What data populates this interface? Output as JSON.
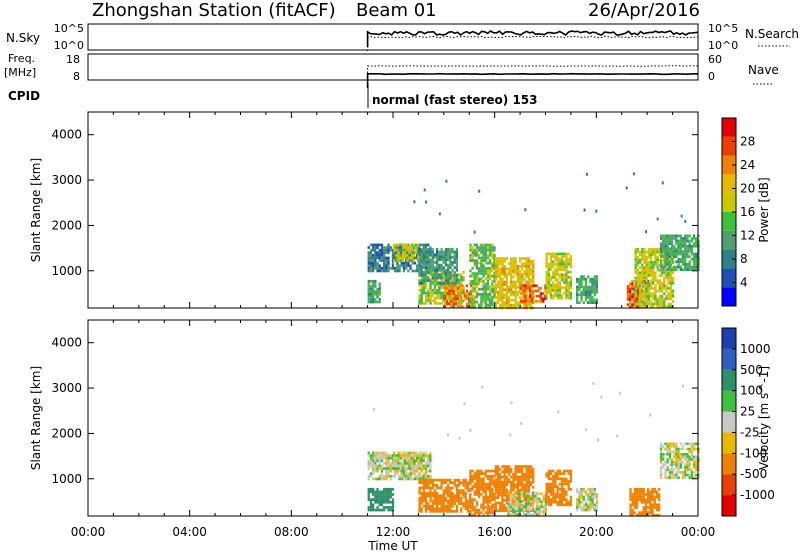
{
  "header": {
    "station": "Zhongshan Station (fitACF)",
    "beam": "Beam 01",
    "date": "26/Apr/2016"
  },
  "strips": {
    "nsky_label": "N.Sky",
    "nsky_ticks": [
      "10^5",
      "10^0"
    ],
    "nsearch_label": "N.Search",
    "nsearch_ticks": [
      "10^5",
      "10^0"
    ],
    "freq_label": "Freq.",
    "freq_unit": "[MHz]",
    "freq_ticks": [
      "18",
      "8"
    ],
    "nave_label": "Nave",
    "nave_ticks": [
      "60",
      "0"
    ],
    "cpid_label": "CPID",
    "cpid_value": "normal (fast stereo) 153",
    "data_start_hour": 11.0
  },
  "chart_data": [
    {
      "type": "heatmap",
      "title": "",
      "xlabel": "Time UT",
      "ylabel": "Slant Range [km]",
      "xlim": [
        0,
        24
      ],
      "ylim": [
        180,
        4500
      ],
      "x_ticks": [
        "00:00",
        "04:00",
        "08:00",
        "12:00",
        "16:00",
        "20:00",
        "00:00"
      ],
      "y_ticks": [
        1000,
        2000,
        3000,
        4000
      ],
      "colorbar": {
        "label": "Power [dB]",
        "ticks": [
          4,
          8,
          12,
          16,
          20,
          24,
          28
        ],
        "colors": [
          "#0000ff",
          "#1f4fb4",
          "#2e7f8a",
          "#4f9f6f",
          "#3fbf3f",
          "#c8c800",
          "#e8b800",
          "#f08000",
          "#e84000",
          "#e00000"
        ]
      },
      "regions": [
        {
          "x": [
            11.0,
            13.5
          ],
          "y": [
            1000,
            1600
          ],
          "value": 8
        },
        {
          "x": [
            11.0,
            11.5
          ],
          "y": [
            300,
            800
          ],
          "value": 12
        },
        {
          "x": [
            12.0,
            13.0
          ],
          "y": [
            1200,
            1600
          ],
          "value": 18
        },
        {
          "x": [
            13.0,
            14.8
          ],
          "y": [
            300,
            1000
          ],
          "value": 16
        },
        {
          "x": [
            14.0,
            15.2
          ],
          "y": [
            200,
            700
          ],
          "value": 24
        },
        {
          "x": [
            13.0,
            14.5
          ],
          "y": [
            700,
            1500
          ],
          "value": 10
        },
        {
          "x": [
            15.0,
            16.0
          ],
          "y": [
            200,
            1600
          ],
          "value": 14
        },
        {
          "x": [
            16.0,
            17.5
          ],
          "y": [
            200,
            1300
          ],
          "value": 20
        },
        {
          "x": [
            17.0,
            18.0
          ],
          "y": [
            300,
            700
          ],
          "value": 26
        },
        {
          "x": [
            18.0,
            19.0
          ],
          "y": [
            400,
            1400
          ],
          "value": 18
        },
        {
          "x": [
            19.2,
            20.0
          ],
          "y": [
            300,
            900
          ],
          "value": 12
        },
        {
          "x": [
            21.2,
            22.0
          ],
          "y": [
            200,
            800
          ],
          "value": 26
        },
        {
          "x": [
            21.5,
            23.0
          ],
          "y": [
            200,
            1500
          ],
          "value": 18
        },
        {
          "x": [
            22.5,
            24.0
          ],
          "y": [
            1000,
            1800
          ],
          "value": 12
        }
      ]
    },
    {
      "type": "heatmap",
      "title": "",
      "xlabel": "Time UT",
      "ylabel": "Slant Range [km]",
      "xlim": [
        0,
        24
      ],
      "ylim": [
        180,
        4500
      ],
      "x_ticks": [
        "00:00",
        "04:00",
        "08:00",
        "12:00",
        "16:00",
        "20:00",
        "00:00"
      ],
      "y_ticks": [
        1000,
        2000,
        3000,
        4000
      ],
      "colorbar": {
        "label": "Velocity [m s^-1]",
        "ticks": [
          "1000",
          "500",
          "100",
          "25",
          "-25",
          "-100",
          "-500",
          "-1000"
        ],
        "colors": [
          "#1f3faf",
          "#2f5fbf",
          "#2e8f6a",
          "#3fbf3f",
          "#c8c8c8",
          "#e8b800",
          "#f08000",
          "#e84000",
          "#e00000"
        ]
      },
      "regions": [
        {
          "x": [
            11.0,
            13.5
          ],
          "y": [
            1000,
            1600
          ],
          "value": 0
        },
        {
          "x": [
            11.0,
            12.0
          ],
          "y": [
            300,
            800
          ],
          "value": 200
        },
        {
          "x": [
            12.0,
            13.0
          ],
          "y": [
            1200,
            1600
          ],
          "value": 0
        },
        {
          "x": [
            13.0,
            15.0
          ],
          "y": [
            300,
            1000
          ],
          "value": -200
        },
        {
          "x": [
            15.0,
            16.0
          ],
          "y": [
            200,
            1200
          ],
          "value": -300
        },
        {
          "x": [
            16.0,
            17.5
          ],
          "y": [
            300,
            1300
          ],
          "value": -300
        },
        {
          "x": [
            16.5,
            18.0
          ],
          "y": [
            200,
            700
          ],
          "value": 0
        },
        {
          "x": [
            18.0,
            19.0
          ],
          "y": [
            400,
            1200
          ],
          "value": -200
        },
        {
          "x": [
            19.2,
            20.0
          ],
          "y": [
            300,
            800
          ],
          "value": 0
        },
        {
          "x": [
            21.3,
            22.5
          ],
          "y": [
            200,
            800
          ],
          "value": -200
        },
        {
          "x": [
            22.5,
            24.0
          ],
          "y": [
            1000,
            1800
          ],
          "value": 0
        }
      ]
    }
  ]
}
